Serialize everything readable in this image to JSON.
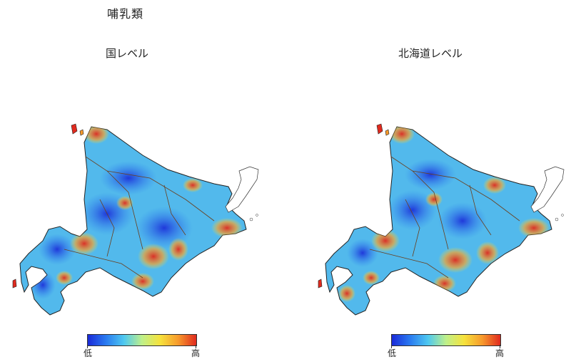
{
  "title": "哺乳類",
  "panels": [
    {
      "id": "left",
      "subtitle": "国レベル"
    },
    {
      "id": "right",
      "subtitle": "北海道レベル"
    }
  ],
  "legend": {
    "low_label": "低",
    "high_label": "高",
    "colors": [
      "#1a2ad8",
      "#2a7af0",
      "#4ec8f0",
      "#bff08a",
      "#f6e23c",
      "#f79a2c",
      "#e02a1e"
    ]
  },
  "map_colors": {
    "base": "#52b9ec",
    "outline": "#222222",
    "road": "#6b3e1c"
  }
}
